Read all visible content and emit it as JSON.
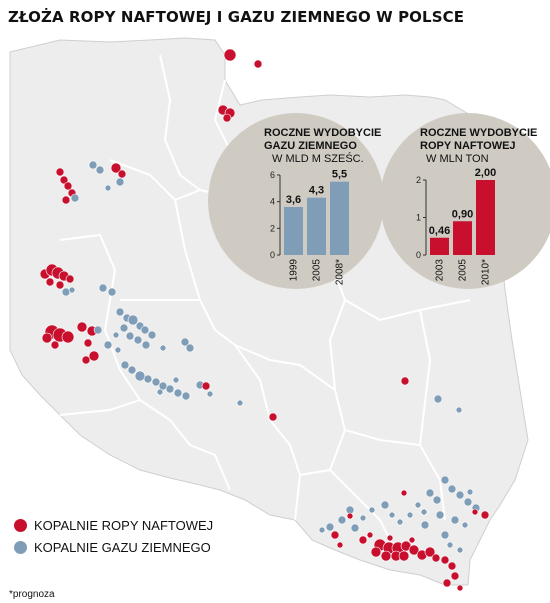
{
  "title": "ZŁOŻA ROPY NAFTOWEJ I GAZU ZIEMNEGO W POLSCE",
  "colors": {
    "oil": "#c8102e",
    "gas": "#7f9db6",
    "land": "#ededed",
    "border": "#ffffff",
    "circle": "#cfcbc2"
  },
  "legend": {
    "oil_label": "KOPALNIE ROPY NAFTOWEJ",
    "gas_label": "KOPALNIE GAZU ZIEMNEGO"
  },
  "footnote": "*prognoza",
  "chart_data": [
    {
      "type": "bar",
      "title": "ROCZNE WYDOBYCIE",
      "title_line2": "GAZU ZIEMNEGO",
      "ylabel": "W MLD M SZEŚC.",
      "categories": [
        "1999",
        "2005",
        "2008*"
      ],
      "values": [
        3.6,
        4.3,
        5.5
      ],
      "value_labels": [
        "3,6",
        "4,3",
        "5,5"
      ],
      "ylim": [
        0,
        6
      ],
      "yticks": [
        0,
        2,
        4,
        6
      ],
      "color": "#7f9db6"
    },
    {
      "type": "bar",
      "title": "ROCZNE WYDOBYCIE",
      "title_line2": "ROPY NAFTOWEJ",
      "ylabel": "W MLN TON",
      "categories": [
        "2003",
        "2005",
        "2010*"
      ],
      "values": [
        0.46,
        0.9,
        2.0
      ],
      "value_labels": [
        "0,46",
        "0,90",
        "2,00"
      ],
      "ylim": [
        0,
        2
      ],
      "yticks": [
        0,
        1,
        2
      ],
      "color": "#c8102e"
    }
  ]
}
